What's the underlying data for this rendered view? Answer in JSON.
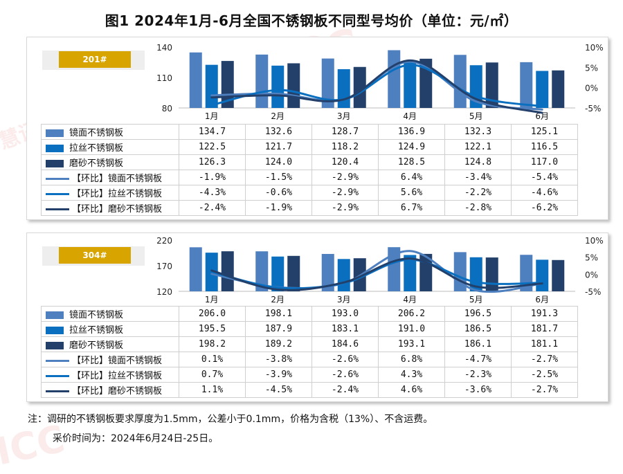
{
  "title": "图1  2024年1月-6月全国不锈钢板不同型号均价（单位：元/㎡）",
  "colors": {
    "mirror": "#4e7fbf",
    "brushed": "#0b6fbf",
    "frosted": "#23406b",
    "tag": "#d8a400"
  },
  "chart_data": [
    {
      "type": "bar",
      "label": "201#",
      "categories": [
        "1月",
        "2月",
        "3月",
        "4月",
        "5月",
        "6月"
      ],
      "ylim": [
        80,
        140
      ],
      "yticks": [
        "80",
        "110",
        "140"
      ],
      "y2lim": [
        -5,
        10
      ],
      "y2ticks": [
        "-5%",
        "0%",
        "5%",
        "10%"
      ],
      "series": [
        {
          "name": "镜面不锈钢板",
          "values": [
            134.7,
            132.6,
            128.7,
            136.9,
            132.3,
            125.1
          ],
          "display": [
            "134.7",
            "132.6",
            "128.7",
            "136.9",
            "132.3",
            "125.1"
          ]
        },
        {
          "name": "拉丝不锈钢板",
          "values": [
            122.5,
            121.7,
            118.2,
            124.9,
            122.1,
            116.5
          ],
          "display": [
            "122.5",
            "121.7",
            "118.2",
            "124.9",
            "122.1",
            "116.5"
          ]
        },
        {
          "name": "磨砂不锈钢板",
          "values": [
            126.3,
            124.0,
            120.4,
            128.5,
            124.8,
            117.0
          ],
          "display": [
            "126.3",
            "124.0",
            "120.4",
            "128.5",
            "124.8",
            "117.0"
          ]
        }
      ],
      "lines": [
        {
          "name": "【环比】镜面不锈钢板",
          "values": [
            -1.9,
            -1.5,
            -2.9,
            6.4,
            -3.4,
            -5.4
          ],
          "display": [
            "-1.9%",
            "-1.5%",
            "-2.9%",
            "6.4%",
            "-3.4%",
            "-5.4%"
          ]
        },
        {
          "name": "【环比】拉丝不锈钢板",
          "values": [
            -4.3,
            -0.6,
            -2.9,
            5.6,
            -2.2,
            -4.6
          ],
          "display": [
            "-4.3%",
            "-0.6%",
            "-2.9%",
            "5.6%",
            "-2.2%",
            "-4.6%"
          ]
        },
        {
          "name": "【环比】磨砂不锈钢板",
          "values": [
            -2.4,
            -1.9,
            -2.9,
            6.7,
            -2.8,
            -6.2
          ],
          "display": [
            "-2.4%",
            "-1.9%",
            "-2.9%",
            "6.7%",
            "-2.8%",
            "-6.2%"
          ]
        }
      ]
    },
    {
      "type": "bar",
      "label": "304#",
      "categories": [
        "1月",
        "2月",
        "3月",
        "4月",
        "5月",
        "6月"
      ],
      "ylim": [
        120,
        220
      ],
      "yticks": [
        "120",
        "170",
        "220"
      ],
      "y2lim": [
        -5,
        10
      ],
      "y2ticks": [
        "-5%",
        "0%",
        "5%",
        "10%"
      ],
      "series": [
        {
          "name": "镜面不锈钢板",
          "values": [
            206.0,
            198.1,
            193.0,
            206.2,
            196.5,
            191.3
          ],
          "display": [
            "206.0",
            "198.1",
            "193.0",
            "206.2",
            "196.5",
            "191.3"
          ]
        },
        {
          "name": "拉丝不锈钢板",
          "values": [
            195.5,
            187.9,
            183.1,
            191.0,
            186.5,
            181.7
          ],
          "display": [
            "195.5",
            "187.9",
            "183.1",
            "191.0",
            "186.5",
            "181.7"
          ]
        },
        {
          "name": "磨砂不锈钢板",
          "values": [
            198.2,
            189.2,
            184.6,
            193.1,
            186.1,
            181.1
          ],
          "display": [
            "198.2",
            "189.2",
            "184.6",
            "193.1",
            "186.1",
            "181.1"
          ]
        }
      ],
      "lines": [
        {
          "name": "【环比】镜面不锈钢板",
          "values": [
            0.1,
            -3.8,
            -2.6,
            6.8,
            -4.7,
            -2.7
          ],
          "display": [
            "0.1%",
            "-3.8%",
            "-2.6%",
            "6.8%",
            "-4.7%",
            "-2.7%"
          ]
        },
        {
          "name": "【环比】拉丝不锈钢板",
          "values": [
            0.7,
            -3.9,
            -2.6,
            4.3,
            -2.3,
            -2.5
          ],
          "display": [
            "0.7%",
            "-3.9%",
            "-2.6%",
            "4.3%",
            "-2.3%",
            "-2.5%"
          ]
        },
        {
          "name": "【环比】磨砂不锈钢板",
          "values": [
            1.1,
            -4.5,
            -2.4,
            4.6,
            -3.6,
            -2.7
          ],
          "display": [
            "1.1%",
            "-4.5%",
            "-2.4%",
            "4.6%",
            "-3.6%",
            "-2.7%"
          ]
        }
      ]
    }
  ],
  "notes": {
    "line1": "注：调研的不锈钢板要求厚度为1.5mm，公差小于0.1mm，价格为含税（13%）、不含运费。",
    "line2": "采价时间为：2024年6月24日-25日。"
  },
  "watermark": {
    "logo": "ICC",
    "text": "慧讯网"
  }
}
